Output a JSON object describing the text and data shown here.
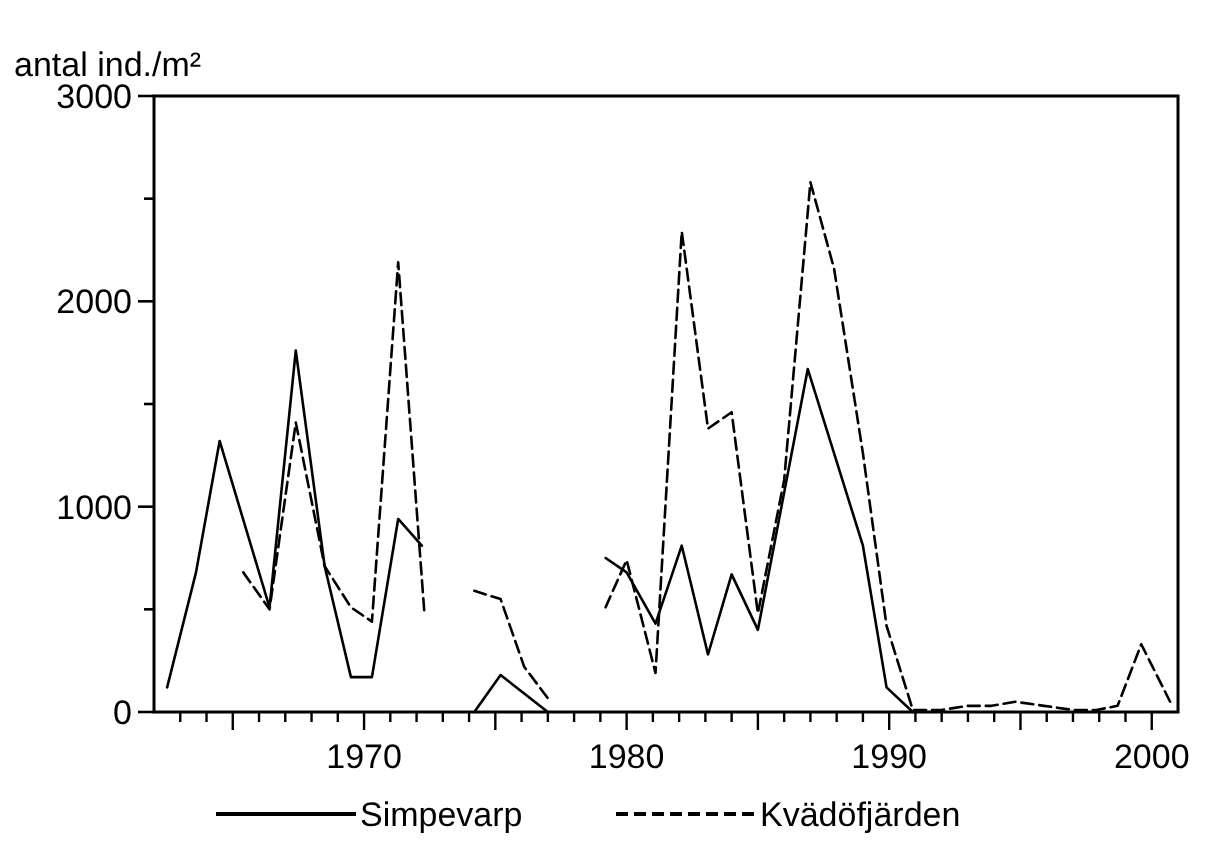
{
  "chart_data": {
    "type": "line",
    "ylabel": "antal ind./m²",
    "series": [
      {
        "name": "Simpevarp",
        "color": "#000000",
        "line_style": "solid",
        "x": [
          1962.5,
          1963.6,
          1964.5,
          1966.4,
          1967.4,
          1968.5,
          1969.5,
          1970.3,
          1971.3,
          1972.2,
          1973.2,
          1974.2,
          1975.2,
          1977.0,
          1978.1,
          1979.2,
          1980.0,
          1981.1,
          1982.1,
          1983.1,
          1984.0,
          1985.0,
          1986.9,
          1989.0,
          1989.9,
          1990.9
        ],
        "values": [
          120,
          680,
          1320,
          510,
          1760,
          710,
          170,
          170,
          940,
          810,
          null,
          0,
          180,
          0,
          null,
          750,
          680,
          430,
          810,
          280,
          670,
          400,
          1670,
          810,
          120,
          0
        ]
      },
      {
        "name": "Kvädöfjärden",
        "color": "#000000",
        "line_style": "dashed",
        "x": [
          1965.4,
          1966.4,
          1967.4,
          1968.5,
          1969.5,
          1970.3,
          1971.3,
          1972.3,
          1973.2,
          1974.2,
          1975.2,
          1976.1,
          1977.1,
          1978.1,
          1979.2,
          1980.0,
          1981.1,
          1982.1,
          1983.1,
          1984.0,
          1985.0,
          1986.0,
          1987.0,
          1987.9,
          1989.0,
          1989.9,
          1990.9,
          1992.0,
          1993.0,
          1993.9,
          1994.8,
          1995.9,
          1997.0,
          1997.9,
          1998.7,
          1999.6,
          2000.7
        ],
        "values": [
          680,
          500,
          1410,
          710,
          510,
          440,
          2190,
          480,
          null,
          590,
          550,
          220,
          50,
          null,
          510,
          740,
          190,
          2340,
          1380,
          1460,
          480,
          1130,
          2580,
          2160,
          1260,
          420,
          10,
          10,
          30,
          30,
          50,
          30,
          10,
          10,
          30,
          330,
          50
        ]
      }
    ],
    "xlim": [
      1962,
      2001
    ],
    "xticks": [
      {
        "value": 1963,
        "label": null
      },
      {
        "value": 1964,
        "label": null
      },
      {
        "value": 1965,
        "label": null
      },
      {
        "value": 1966,
        "label": null
      },
      {
        "value": 1967,
        "label": null
      },
      {
        "value": 1968,
        "label": null
      },
      {
        "value": 1969,
        "label": null
      },
      1970,
      {
        "value": 1971,
        "label": null
      },
      {
        "value": 1972,
        "label": null
      },
      {
        "value": 1973,
        "label": null
      },
      {
        "value": 1974,
        "label": null
      },
      {
        "value": 1975,
        "label": null
      },
      {
        "value": 1976,
        "label": null
      },
      {
        "value": 1977,
        "label": null
      },
      {
        "value": 1978,
        "label": null
      },
      {
        "value": 1979,
        "label": null
      },
      1980,
      {
        "value": 1981,
        "label": null
      },
      {
        "value": 1982,
        "label": null
      },
      {
        "value": 1983,
        "label": null
      },
      {
        "value": 1984,
        "label": null
      },
      {
        "value": 1985,
        "label": null
      },
      {
        "value": 1986,
        "label": null
      },
      {
        "value": 1987,
        "label": null
      },
      {
        "value": 1988,
        "label": null
      },
      {
        "value": 1989,
        "label": null
      },
      1990,
      {
        "value": 1991,
        "label": null
      },
      {
        "value": 1992,
        "label": null
      },
      {
        "value": 1993,
        "label": null
      },
      {
        "value": 1994,
        "label": null
      },
      {
        "value": 1995,
        "label": null
      },
      {
        "value": 1996,
        "label": null
      },
      {
        "value": 1997,
        "label": null
      },
      {
        "value": 1998,
        "label": null
      },
      {
        "value": 1999,
        "label": null
      },
      2000
    ],
    "ylim": [
      0,
      3000
    ],
    "yticks": [
      0,
      {
        "value": 500,
        "label": null
      },
      1000,
      {
        "value": 1500,
        "label": null
      },
      2000,
      {
        "value": 2500,
        "label": null
      },
      3000
    ],
    "grid": false,
    "legend": "bottom",
    "marker": "none"
  }
}
